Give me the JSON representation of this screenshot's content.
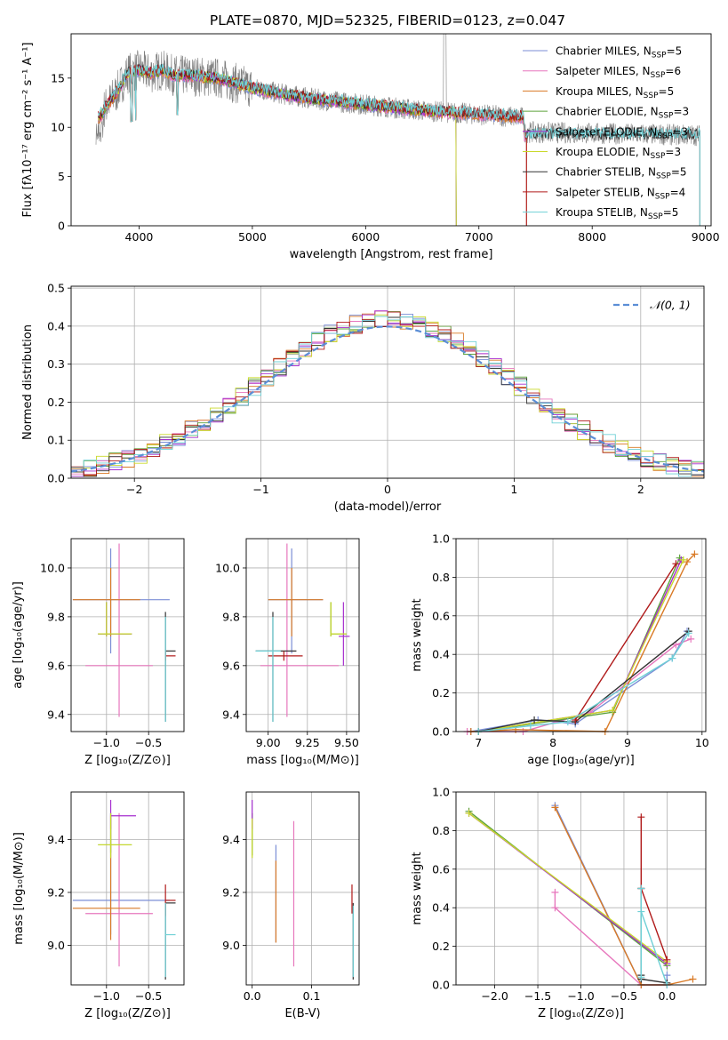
{
  "figure": {
    "title": "PLATE=0870, MJD=52325, FIBERID=0123, z=0.047"
  },
  "colors": {
    "Chabrier MILES": "#7b8ed6",
    "Salpeter MILES": "#e777bd",
    "Kroupa MILES": "#d97a26",
    "Chabrier ELODIE": "#5ea33c",
    "Salpeter ELODIE": "#a62fcf",
    "Kroupa ELODIE": "#c9d92b",
    "Chabrier STELIB": "#333333",
    "Salpeter STELIB": "#b01a1a",
    "Kroupa STELIB": "#6fd0d6",
    "data": "#808080",
    "normal": "#5b8ed6"
  },
  "chart_data": [
    {
      "id": "spectrum",
      "type": "line",
      "xlabel": "wavelength [Angstrom, rest frame]",
      "ylabel": "Flux [f$_\\lambda$10$^{-17}$ erg cm$^{-2}$ s$^{-1}$ A$^{-1}$]",
      "xlim": [
        3400,
        9050
      ],
      "ylim": [
        0,
        19.5
      ],
      "xticks": [
        4000,
        5000,
        6000,
        7000,
        8000,
        9000
      ],
      "yticks": [
        0,
        5,
        10,
        15
      ],
      "legend_position": "top-right",
      "legend": [
        {
          "base": "Chabrier MILES, N",
          "sub": "SSP",
          "val": "=5"
        },
        {
          "base": "Salpeter MILES, N",
          "sub": "SSP",
          "val": "=6"
        },
        {
          "base": "Kroupa MILES, N",
          "sub": "SSP",
          "val": "=5"
        },
        {
          "base": "Chabrier ELODIE, N",
          "sub": "SSP",
          "val": "=3"
        },
        {
          "base": "Salpeter ELODIE, N",
          "sub": "SSP",
          "val": "=3"
        },
        {
          "base": "Kroupa ELODIE, N",
          "sub": "SSP",
          "val": "=3"
        },
        {
          "base": "Chabrier STELIB, N",
          "sub": "SSP",
          "val": "=5"
        },
        {
          "base": "Salpeter STELIB, N",
          "sub": "SSP",
          "val": "=4"
        },
        {
          "base": "Kroupa STELIB, N",
          "sub": "SSP",
          "val": "=5"
        }
      ],
      "continuum": {
        "x": [
          3650,
          3700,
          3800,
          3900,
          4000,
          4100,
          4200,
          4300,
          4500,
          4700,
          5000,
          5300,
          5600,
          6000,
          6500,
          7000,
          7400
        ],
        "y": [
          11,
          12,
          13.5,
          15.5,
          15.8,
          15.5,
          15.8,
          15.3,
          15.2,
          15.0,
          14.0,
          13.3,
          12.8,
          12.3,
          11.7,
          11.3,
          11.0
        ]
      },
      "data_extends_to": 8950,
      "data_tail_level": 9.2
    },
    {
      "id": "residuals",
      "type": "line",
      "xlabel": "(data-model)/error",
      "ylabel": "Normed distribution",
      "xlim": [
        -2.5,
        2.5
      ],
      "ylim": [
        0,
        0.505
      ],
      "xticks": [
        -2,
        -1,
        0,
        1,
        2
      ],
      "yticks": [
        0.0,
        0.1,
        0.2,
        0.3,
        0.4,
        0.5
      ],
      "grid": true,
      "legend_position": "top-right",
      "legend_label": "N(0, 1)",
      "bin_width": 0.1
    },
    {
      "id": "age-vs-Z",
      "type": "scatter",
      "xlabel": "Z [log10(Z/Z⊙)]",
      "ylabel": "age [log10(age/yr)]",
      "xlim": [
        -1.42,
        -0.08
      ],
      "ylim": [
        9.33,
        10.12
      ],
      "xticks": [
        -1.0,
        -0.5
      ],
      "yticks": [
        9.4,
        9.6,
        9.8,
        10.0
      ],
      "grid": true,
      "points": [
        {
          "m": "Chabrier MILES",
          "x": -0.95,
          "y": 9.87,
          "xe": [
            -1.4,
            -0.25
          ],
          "ye": [
            9.65,
            10.08
          ]
        },
        {
          "m": "Salpeter MILES",
          "x": -0.85,
          "y": 9.6,
          "xe": [
            -1.25,
            -0.45
          ],
          "ye": [
            9.39,
            10.1
          ]
        },
        {
          "m": "Kroupa MILES",
          "x": -0.95,
          "y": 9.87,
          "xe": [
            -1.4,
            -0.6
          ],
          "ye": [
            9.72,
            10.0
          ]
        },
        {
          "m": "Chabrier ELODIE",
          "x": -1.0,
          "y": 9.73,
          "xe": [
            -1.1,
            -0.7
          ],
          "ye": [
            9.72,
            9.86
          ]
        },
        {
          "m": "Salpeter ELODIE",
          "x": -1.0,
          "y": 9.73,
          "xe": [
            -1.1,
            -0.7
          ],
          "ye": [
            9.72,
            9.86
          ]
        },
        {
          "m": "Kroupa ELODIE",
          "x": -1.0,
          "y": 9.73,
          "xe": [
            -1.1,
            -0.7
          ],
          "ye": [
            9.72,
            9.86
          ]
        },
        {
          "m": "Chabrier STELIB",
          "x": -0.3,
          "y": 9.66,
          "xe": [
            -0.3,
            -0.18
          ],
          "ye": [
            9.37,
            9.82
          ]
        },
        {
          "m": "Salpeter STELIB",
          "x": -0.3,
          "y": 9.64,
          "xe": [
            -0.3,
            -0.18
          ],
          "ye": [
            9.62,
            9.66
          ]
        },
        {
          "m": "Kroupa STELIB",
          "x": -0.3,
          "y": 9.66,
          "xe": [
            -0.3,
            -0.3
          ],
          "ye": [
            9.37,
            9.8
          ]
        }
      ]
    },
    {
      "id": "age-vs-mass",
      "type": "scatter",
      "xlabel": "mass [log10(M/M⊙)]",
      "ylabel": "",
      "xlim": [
        8.86,
        9.58
      ],
      "ylim": [
        9.33,
        10.12
      ],
      "xticks": [
        9.0,
        9.25,
        9.5
      ],
      "yticks": [
        9.4,
        9.6,
        9.8,
        10.0
      ],
      "grid": true,
      "points": [
        {
          "m": "Chabrier MILES",
          "x": 9.15,
          "y": 9.87,
          "xe": [
            9.0,
            9.35
          ],
          "ye": [
            9.65,
            10.08
          ]
        },
        {
          "m": "Salpeter MILES",
          "x": 9.12,
          "y": 9.6,
          "xe": [
            8.95,
            9.45
          ],
          "ye": [
            9.39,
            10.1
          ]
        },
        {
          "m": "Kroupa MILES",
          "x": 9.15,
          "y": 9.87,
          "xe": [
            9.0,
            9.35
          ],
          "ye": [
            9.72,
            10.0
          ]
        },
        {
          "m": "Chabrier ELODIE",
          "x": 9.4,
          "y": 9.73,
          "xe": [
            9.4,
            9.5
          ],
          "ye": [
            9.72,
            9.86
          ]
        },
        {
          "m": "Salpeter ELODIE",
          "x": 9.48,
          "y": 9.72,
          "xe": [
            9.45,
            9.52
          ],
          "ye": [
            9.6,
            9.86
          ]
        },
        {
          "m": "Kroupa ELODIE",
          "x": 9.4,
          "y": 9.73,
          "xe": [
            9.4,
            9.5
          ],
          "ye": [
            9.72,
            9.86
          ]
        },
        {
          "m": "Chabrier STELIB",
          "x": 9.03,
          "y": 9.66,
          "xe": [
            8.92,
            9.18
          ],
          "ye": [
            9.37,
            9.82
          ]
        },
        {
          "m": "Salpeter STELIB",
          "x": 9.1,
          "y": 9.64,
          "xe": [
            9.0,
            9.22
          ],
          "ye": [
            9.62,
            9.66
          ]
        },
        {
          "m": "Kroupa STELIB",
          "x": 9.03,
          "y": 9.66,
          "xe": [
            8.92,
            9.08
          ],
          "ye": [
            9.37,
            9.8
          ]
        }
      ]
    },
    {
      "id": "mass-weight-vs-age",
      "type": "line",
      "xlabel": "age [log10(age/yr)]",
      "ylabel": "mass weight",
      "xlim": [
        6.7,
        10.05
      ],
      "ylim": [
        0,
        1.0
      ],
      "xticks": [
        7,
        8,
        9,
        10
      ],
      "yticks": [
        0.0,
        0.2,
        0.4,
        0.6,
        0.8,
        1.0
      ],
      "grid": true,
      "series": [
        {
          "m": "Chabrier MILES",
          "x": [
            6.9,
            7.8,
            8.3,
            9.6,
            9.8
          ],
          "y": [
            0.0,
            0.06,
            0.04,
            0.38,
            0.52
          ]
        },
        {
          "m": "Salpeter MILES",
          "x": [
            6.85,
            7.6,
            8.5,
            9.65,
            9.85
          ],
          "y": [
            0.0,
            0.0,
            0.1,
            0.45,
            0.48
          ]
        },
        {
          "m": "Kroupa MILES",
          "x": [
            6.9,
            7.5,
            8.7,
            9.8,
            9.9
          ],
          "y": [
            0.0,
            0.01,
            0.0,
            0.88,
            0.92
          ]
        },
        {
          "m": "Chabrier ELODIE",
          "x": [
            7.0,
            8.8,
            9.7
          ],
          "y": [
            0.0,
            0.1,
            0.9
          ]
        },
        {
          "m": "Salpeter ELODIE",
          "x": [
            7.0,
            8.8,
            9.72
          ],
          "y": [
            0.0,
            0.11,
            0.89
          ]
        },
        {
          "m": "Kroupa ELODIE",
          "x": [
            7.0,
            8.8,
            9.75
          ],
          "y": [
            0.0,
            0.11,
            0.89
          ]
        },
        {
          "m": "Chabrier STELIB",
          "x": [
            7.0,
            7.75,
            8.3,
            9.82
          ],
          "y": [
            0.0,
            0.06,
            0.05,
            0.52
          ]
        },
        {
          "m": "Salpeter STELIB",
          "x": [
            8.3,
            9.65
          ],
          "y": [
            0.06,
            0.87
          ]
        },
        {
          "m": "Kroupa STELIB",
          "x": [
            7.0,
            7.7,
            8.2,
            9.6,
            9.82
          ],
          "y": [
            0.0,
            0.03,
            0.05,
            0.38,
            0.51
          ]
        }
      ]
    },
    {
      "id": "mass-vs-Z",
      "type": "scatter",
      "xlabel": "Z [log10(Z/Z⊙)]",
      "ylabel": "mass [log10(M/M⊙)]",
      "xlim": [
        -1.42,
        -0.08
      ],
      "ylim": [
        8.85,
        9.58
      ],
      "xticks": [
        -1.0,
        -0.5
      ],
      "yticks": [
        9.0,
        9.2,
        9.4
      ],
      "grid": true,
      "points": [
        {
          "m": "Chabrier MILES",
          "x": -0.95,
          "y": 9.17,
          "xe": [
            -1.4,
            -0.25
          ],
          "ye": [
            9.04,
            9.5
          ]
        },
        {
          "m": "Salpeter MILES",
          "x": -0.85,
          "y": 9.12,
          "xe": [
            -1.25,
            -0.45
          ],
          "ye": [
            8.92,
            9.5
          ]
        },
        {
          "m": "Kroupa MILES",
          "x": -0.95,
          "y": 9.14,
          "xe": [
            -1.4,
            -0.6
          ],
          "ye": [
            9.02,
            9.49
          ]
        },
        {
          "m": "Chabrier ELODIE",
          "x": -0.95,
          "y": 9.38,
          "xe": [
            -1.1,
            -0.7
          ],
          "ye": [
            9.35,
            9.5
          ]
        },
        {
          "m": "Salpeter ELODIE",
          "x": -0.95,
          "y": 9.49,
          "xe": [
            -0.95,
            -0.65
          ],
          "ye": [
            9.44,
            9.55
          ]
        },
        {
          "m": "Kroupa ELODIE",
          "x": -0.95,
          "y": 9.38,
          "xe": [
            -1.1,
            -0.7
          ],
          "ye": [
            9.33,
            9.5
          ]
        },
        {
          "m": "Chabrier STELIB",
          "x": -0.3,
          "y": 9.16,
          "xe": [
            -0.3,
            -0.18
          ],
          "ye": [
            8.87,
            9.16
          ]
        },
        {
          "m": "Salpeter STELIB",
          "x": -0.3,
          "y": 9.17,
          "xe": [
            -0.3,
            -0.18
          ],
          "ye": [
            9.11,
            9.23
          ]
        },
        {
          "m": "Kroupa STELIB",
          "x": -0.3,
          "y": 9.04,
          "xe": [
            -0.3,
            -0.18
          ],
          "ye": [
            8.88,
            9.16
          ]
        }
      ]
    },
    {
      "id": "mass-vs-ebv",
      "type": "scatter",
      "xlabel": "E(B-V)",
      "ylabel": "",
      "xlim": [
        -0.01,
        0.18
      ],
      "ylim": [
        8.85,
        9.58
      ],
      "xticks": [
        0.0,
        0.1
      ],
      "yticks": [
        9.0,
        9.2,
        9.4
      ],
      "grid": true,
      "points": [
        {
          "m": "Chabrier MILES",
          "x": 0.04,
          "y": 9.17,
          "xe": [
            0.04,
            0.04
          ],
          "ye": [
            9.01,
            9.38
          ]
        },
        {
          "m": "Salpeter MILES",
          "x": 0.07,
          "y": 9.12,
          "xe": [
            0.07,
            0.07
          ],
          "ye": [
            8.92,
            9.47
          ]
        },
        {
          "m": "Kroupa MILES",
          "x": 0.04,
          "y": 9.14,
          "xe": [
            0.04,
            0.04
          ],
          "ye": [
            9.01,
            9.32
          ]
        },
        {
          "m": "Chabrier ELODIE",
          "x": 0.0,
          "y": 9.38,
          "xe": [
            0.0,
            0.0
          ],
          "ye": [
            9.34,
            9.5
          ]
        },
        {
          "m": "Salpeter ELODIE",
          "x": 0.0,
          "y": 9.49,
          "xe": [
            0.0,
            0.0
          ],
          "ye": [
            9.44,
            9.55
          ]
        },
        {
          "m": "Kroupa ELODIE",
          "x": 0.0,
          "y": 9.38,
          "xe": [
            0.0,
            0.0
          ],
          "ye": [
            9.33,
            9.48
          ]
        },
        {
          "m": "Chabrier STELIB",
          "x": 0.17,
          "y": 9.16,
          "xe": [
            0.17,
            0.17
          ],
          "ye": [
            8.87,
            9.16
          ]
        },
        {
          "m": "Salpeter STELIB",
          "x": 0.168,
          "y": 9.17,
          "xe": [
            0.168,
            0.168
          ],
          "ye": [
            9.12,
            9.23
          ]
        },
        {
          "m": "Kroupa STELIB",
          "x": 0.17,
          "y": 9.04,
          "xe": [
            0.17,
            0.17
          ],
          "ye": [
            8.88,
            9.15
          ]
        }
      ]
    },
    {
      "id": "mass-weight-vs-Z",
      "type": "line",
      "xlabel": "Z [log10(Z/Z⊙)]",
      "ylabel": "mass weight",
      "xlim": [
        -2.45,
        0.45
      ],
      "ylim": [
        0,
        1.0
      ],
      "xticks": [
        -2.0,
        -1.5,
        -1.0,
        -0.5,
        0.0
      ],
      "yticks": [
        0.0,
        0.2,
        0.4,
        0.6,
        0.8,
        1.0
      ],
      "grid": true,
      "series": [
        {
          "m": "Chabrier MILES",
          "x": [
            -1.3,
            -0.3,
            0.0,
            0.0
          ],
          "y": [
            0.93,
            0.0,
            0.0,
            0.05
          ]
        },
        {
          "m": "Salpeter MILES",
          "x": [
            -1.3,
            -1.3,
            -0.3,
            0.0,
            0.0
          ],
          "y": [
            0.48,
            0.4,
            0.0,
            0.0,
            0.0
          ]
        },
        {
          "m": "Kroupa MILES",
          "x": [
            -1.3,
            -0.3,
            0.0,
            0.3
          ],
          "y": [
            0.92,
            0.0,
            0.0,
            0.03
          ]
        },
        {
          "m": "Chabrier ELODIE",
          "x": [
            -2.3,
            0.0
          ],
          "y": [
            0.9,
            0.1
          ]
        },
        {
          "m": "Salpeter ELODIE",
          "x": [
            -2.3,
            0.0
          ],
          "y": [
            0.89,
            0.11
          ]
        },
        {
          "m": "Kroupa ELODIE",
          "x": [
            -2.3,
            0.0
          ],
          "y": [
            0.89,
            0.12
          ]
        },
        {
          "m": "Chabrier STELIB",
          "x": [
            -0.3,
            -0.3,
            -0.3,
            0.0
          ],
          "y": [
            0.05,
            0.5,
            0.03,
            0.01
          ]
        },
        {
          "m": "Salpeter STELIB",
          "x": [
            -0.3,
            -0.3,
            0.0
          ],
          "y": [
            0.87,
            0.5,
            0.13
          ]
        },
        {
          "m": "Kroupa STELIB",
          "x": [
            -0.3,
            -0.3,
            -0.3,
            0.0
          ],
          "y": [
            0.04,
            0.5,
            0.38,
            0.0
          ]
        }
      ]
    }
  ]
}
